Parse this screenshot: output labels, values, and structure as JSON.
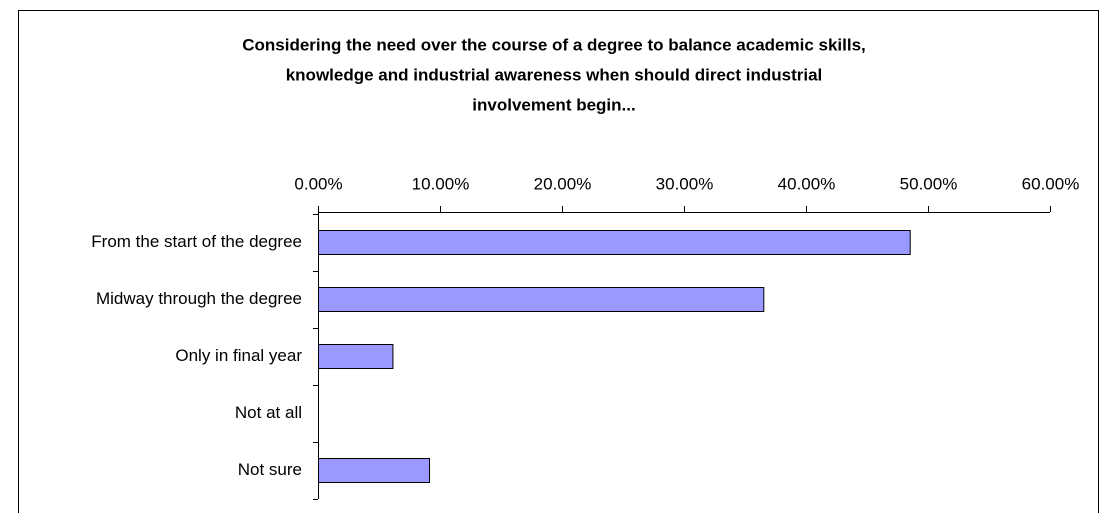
{
  "chart_data": {
    "type": "bar",
    "orientation": "horizontal",
    "title": [
      "Considering the need over the course of a degree to balance academic skills,",
      "knowledge and industrial awareness when should direct industrial",
      "involvement begin..."
    ],
    "categories": [
      "From the start of the degree",
      "Midway through the degree",
      "Only in final year",
      "Not at all",
      "Not sure"
    ],
    "values": [
      48.5,
      36.5,
      6.1,
      0,
      9.1
    ],
    "color": "#9999ff",
    "xlim": [
      0,
      60
    ],
    "xticks": [
      {
        "value": 0,
        "label": "0.00%"
      },
      {
        "value": 10,
        "label": "10.00%"
      },
      {
        "value": 20,
        "label": "20.00%"
      },
      {
        "value": 30,
        "label": "30.00%"
      },
      {
        "value": 40,
        "label": "40.00%"
      },
      {
        "value": 50,
        "label": "50.00%"
      },
      {
        "value": 60,
        "label": "60.00%"
      }
    ],
    "grid": false
  }
}
